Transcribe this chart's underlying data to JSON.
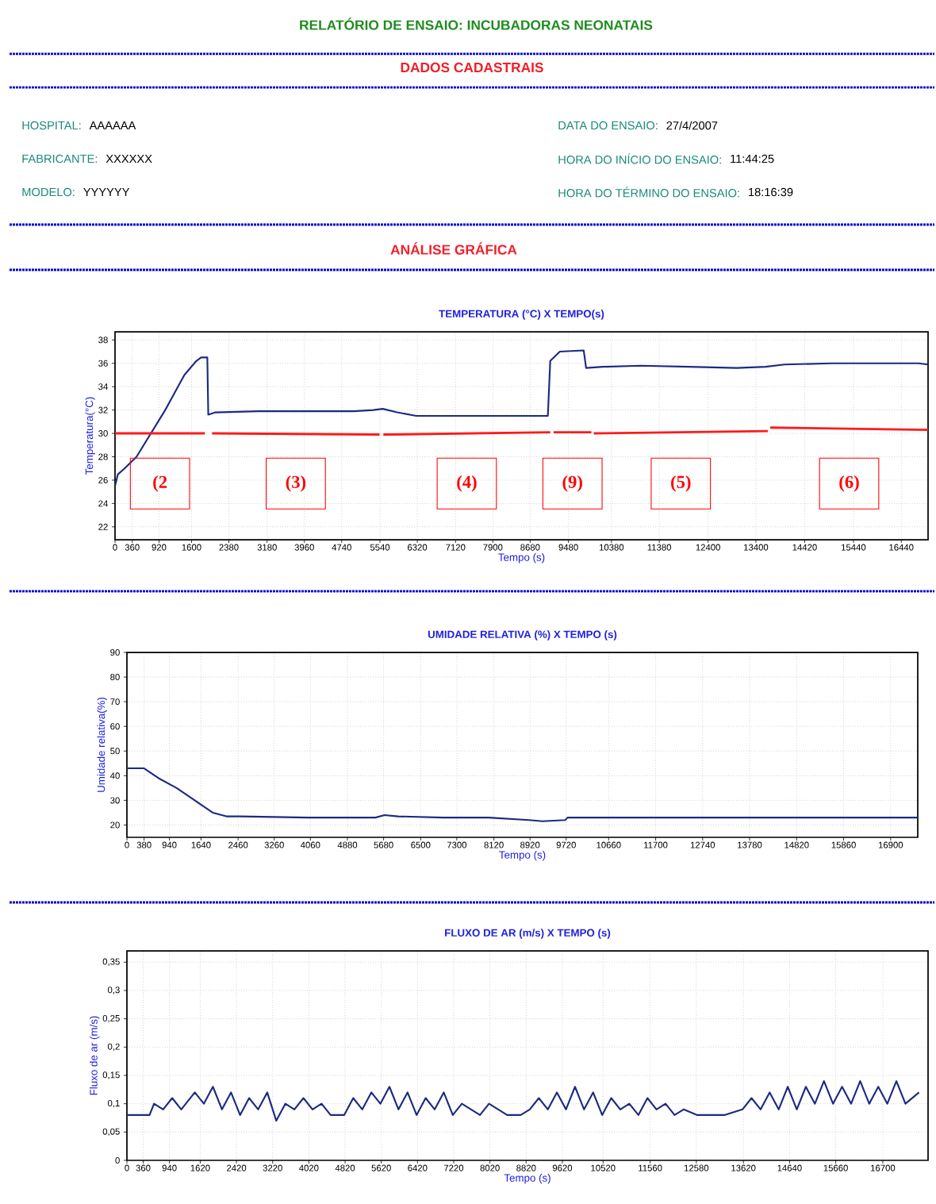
{
  "chart_data": [
    {
      "type": "other",
      "title": "RELATÓRIO DE ENSAIO: INCUBADORAS NEONATAIS",
      "annotations": [
        "DADOS CADASTRAIS",
        "ANÁLISE GRÁFICA",
        "HOSPITAL:",
        "AAAAAA",
        "FABRICANTE:",
        "XXXXXX",
        "MODELO:",
        "YYYYYY",
        "DATA DO ENSAIO:",
        "27/4/2007",
        "HORA DO INÍCIO DO ENSAIO:",
        "11:44:25",
        "HORA DO TÉRMINO DO ENSAIO:",
        "18:16:39"
      ]
    },
    {
      "type": "line",
      "title": "TEMPERATURA (°C) X TEMPO(s)",
      "xlabel": "Tempo (s)",
      "ylabel": "Temperatura(°C)",
      "grid": true,
      "xlim": [
        0,
        17000
      ],
      "ylim": [
        20.9,
        38.7
      ],
      "xticks": [
        0,
        360,
        920,
        1600,
        2380,
        3180,
        3960,
        4740,
        5540,
        6320,
        7120,
        7900,
        8680,
        9480,
        10380,
        11380,
        12400,
        13400,
        14420,
        15440,
        16440
      ],
      "yticks": [
        22,
        24,
        26,
        28,
        30,
        32,
        34,
        36,
        38
      ],
      "series": [
        {
          "color": "#1c2a80",
          "x": [
            0,
            60,
            200,
            450,
            750,
            1050,
            1250,
            1450,
            1700,
            1800,
            1930,
            1950,
            2100,
            3000,
            4000,
            5000,
            5400,
            5600,
            5900,
            6300,
            7500,
            8500,
            9050,
            9100,
            9300,
            9800,
            9850,
            10200,
            11000,
            12000,
            13000,
            13600,
            14000,
            15000,
            16000,
            16800,
            17000
          ],
          "values": [
            25.5,
            26.5,
            27,
            28,
            30,
            32,
            33.5,
            35,
            36.2,
            36.5,
            36.5,
            31.6,
            31.8,
            31.9,
            31.9,
            31.9,
            32,
            32.1,
            31.8,
            31.5,
            31.5,
            31.5,
            31.5,
            36.2,
            37,
            37.1,
            35.6,
            35.7,
            35.8,
            35.7,
            35.6,
            35.7,
            35.9,
            36,
            36,
            36,
            35.9
          ]
        },
        {
          "color": "#ff1a1a",
          "x": [
            0,
            1880
          ],
          "values": [
            30,
            30
          ]
        },
        {
          "color": "#ff1a1a",
          "x": [
            2030,
            5530
          ],
          "values": [
            30,
            29.9
          ]
        },
        {
          "color": "#ff1a1a",
          "x": [
            5610,
            9100
          ],
          "values": [
            29.9,
            30.1
          ]
        },
        {
          "color": "#ff1a1a",
          "x": [
            9170,
            9960
          ],
          "values": [
            30.1,
            30.1
          ]
        },
        {
          "color": "#ff1a1a",
          "x": [
            10010,
            13650
          ],
          "values": [
            30,
            30.2
          ]
        },
        {
          "color": "#ff1a1a",
          "x": [
            13700,
            17000
          ],
          "values": [
            30.5,
            30.3
          ]
        }
      ],
      "annotations": [
        "(2",
        "(3)",
        "(4)",
        "(9)",
        "(5)",
        "(6)"
      ]
    },
    {
      "type": "line",
      "title": "UMIDADE RELATIVA (%) X TEMPO (s)",
      "xlabel": "Tempo (s)",
      "ylabel": "Umidade relativa(%)",
      "grid": true,
      "xlim": [
        0,
        17500
      ],
      "ylim": [
        15,
        90
      ],
      "xticks": [
        0,
        380,
        940,
        1640,
        2460,
        3260,
        4060,
        4880,
        5680,
        6500,
        7300,
        8120,
        8920,
        9720,
        10660,
        11700,
        12740,
        13780,
        14820,
        15860,
        16900
      ],
      "yticks": [
        20,
        30,
        40,
        50,
        60,
        70,
        80,
        90
      ],
      "series": [
        {
          "color": "#1c2a80",
          "x": [
            0,
            380,
            700,
            1100,
            1500,
            1900,
            2200,
            2500,
            4000,
            5500,
            5700,
            6000,
            7000,
            8000,
            8900,
            9200,
            9700,
            9750,
            12000,
            15000,
            17500
          ],
          "values": [
            43,
            43,
            39,
            35,
            30,
            25,
            23.5,
            23.5,
            23,
            23,
            24,
            23.5,
            23,
            23,
            22,
            21.5,
            22,
            23,
            23,
            23,
            23
          ]
        }
      ]
    },
    {
      "type": "line",
      "title": "FLUXO DE AR (m/s) X TEMPO (s)",
      "xlabel": "Tempo (s)",
      "ylabel": "Fluxo de ar (m/s)",
      "grid": true,
      "xlim": [
        0,
        17700
      ],
      "ylim": [
        0,
        0.37
      ],
      "xticks": [
        0,
        360,
        940,
        1620,
        2420,
        3220,
        4020,
        4820,
        5620,
        6420,
        7220,
        8020,
        8820,
        9620,
        10520,
        11560,
        12580,
        13620,
        14640,
        15660,
        16700
      ],
      "yticks": [
        0,
        {
          "value": 0.05,
          "label": "0,05"
        },
        {
          "value": 0.1,
          "label": "0,1"
        },
        {
          "value": 0.15,
          "label": "0,15"
        },
        {
          "value": 0.2,
          "label": "0,2"
        },
        {
          "value": 0.25,
          "label": "0,25"
        },
        {
          "value": 0.3,
          "label": "0,3"
        },
        {
          "value": 0.35,
          "label": "0,35"
        }
      ],
      "series": [
        {
          "color": "#1c2a80",
          "x": [
            0,
            500,
            600,
            800,
            1000,
            1200,
            1500,
            1700,
            1900,
            2100,
            2300,
            2500,
            2700,
            2900,
            3100,
            3300,
            3500,
            3700,
            3900,
            4100,
            4300,
            4500,
            4800,
            5000,
            5200,
            5400,
            5600,
            5800,
            6000,
            6200,
            6400,
            6600,
            6800,
            7000,
            7200,
            7400,
            7600,
            7800,
            8000,
            8200,
            8400,
            8700,
            8900,
            9100,
            9300,
            9500,
            9700,
            9900,
            10100,
            10300,
            10500,
            10700,
            10900,
            11100,
            11300,
            11500,
            11700,
            11900,
            12100,
            12300,
            12600,
            13200,
            13600,
            13800,
            14000,
            14200,
            14400,
            14600,
            14800,
            15000,
            15200,
            15400,
            15600,
            15800,
            16000,
            16200,
            16400,
            16600,
            16800,
            17000,
            17200,
            17500
          ],
          "values": [
            0.08,
            0.08,
            0.1,
            0.09,
            0.11,
            0.09,
            0.12,
            0.1,
            0.13,
            0.09,
            0.12,
            0.08,
            0.11,
            0.09,
            0.12,
            0.07,
            0.1,
            0.09,
            0.11,
            0.09,
            0.1,
            0.08,
            0.08,
            0.11,
            0.09,
            0.12,
            0.1,
            0.13,
            0.09,
            0.12,
            0.08,
            0.11,
            0.09,
            0.12,
            0.08,
            0.1,
            0.09,
            0.08,
            0.1,
            0.09,
            0.08,
            0.08,
            0.09,
            0.11,
            0.09,
            0.12,
            0.09,
            0.13,
            0.09,
            0.12,
            0.08,
            0.11,
            0.09,
            0.1,
            0.08,
            0.11,
            0.09,
            0.1,
            0.08,
            0.09,
            0.08,
            0.08,
            0.09,
            0.11,
            0.09,
            0.12,
            0.09,
            0.13,
            0.09,
            0.13,
            0.1,
            0.14,
            0.1,
            0.13,
            0.1,
            0.14,
            0.1,
            0.13,
            0.1,
            0.14,
            0.1,
            0.12
          ]
        }
      ]
    }
  ]
}
